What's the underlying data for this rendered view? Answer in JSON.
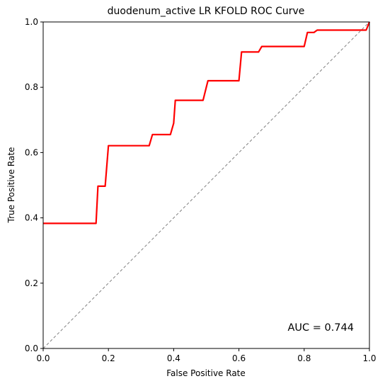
{
  "chart_data": {
    "type": "line",
    "title": "duodenum_active LR KFOLD ROC Curve",
    "xlabel": "False Positive Rate",
    "ylabel": "True Positive Rate",
    "xlim": [
      0,
      1
    ],
    "ylim": [
      0,
      1
    ],
    "xticks": [
      "0.0",
      "0.2",
      "0.4",
      "0.6",
      "0.8",
      "1.0"
    ],
    "yticks": [
      "0.0",
      "0.2",
      "0.4",
      "0.6",
      "0.8",
      "1.0"
    ],
    "grid": false,
    "annotation": "AUC = 0.744",
    "series": [
      {
        "color": "#ff0000",
        "x": [
          0.0,
          0.162,
          0.168,
          0.19,
          0.2,
          0.325,
          0.335,
          0.39,
          0.4,
          0.405,
          0.49,
          0.5,
          0.505,
          0.6,
          0.608,
          0.66,
          0.67,
          0.8,
          0.81,
          0.83,
          0.84,
          0.99,
          1.0
        ],
        "y": [
          0.383,
          0.383,
          0.497,
          0.497,
          0.621,
          0.621,
          0.655,
          0.655,
          0.69,
          0.76,
          0.76,
          0.8,
          0.82,
          0.82,
          0.908,
          0.908,
          0.925,
          0.925,
          0.968,
          0.968,
          0.975,
          0.975,
          1.0
        ]
      },
      {
        "color": "#808080",
        "dashed": true,
        "x": [
          0,
          1
        ],
        "y": [
          0,
          1
        ]
      }
    ]
  }
}
